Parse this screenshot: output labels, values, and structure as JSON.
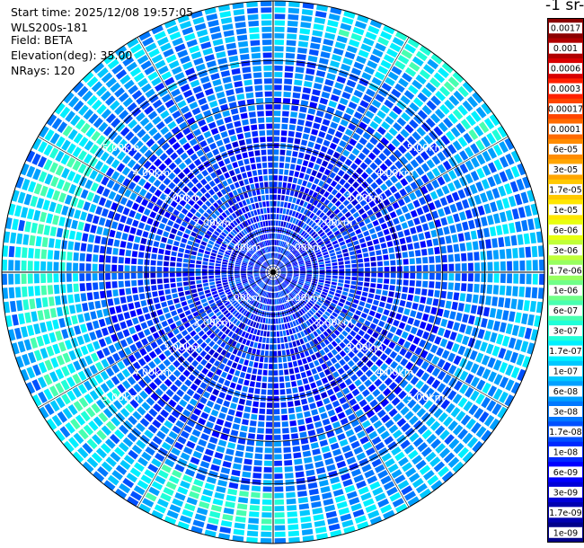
{
  "info": {
    "start_time": "Start time: 2025/12/08 19:57:05",
    "instrument": "WLS200s-181",
    "field": "Field: BETA",
    "elevation": "Elevation(deg): 35.00",
    "nrays": "NRays: 120"
  },
  "colorbar": {
    "title": "-1 sr-",
    "labels": [
      "0.0017",
      "0.001",
      "0.0006",
      "0.0003",
      "0.00017",
      "0.0001",
      "6e-05",
      "3e-05",
      "1.7e-05",
      "1e-05",
      "6e-06",
      "3e-06",
      "1.7e-06",
      "1e-06",
      "6e-07",
      "3e-07",
      "1.7e-07",
      "1e-07",
      "6e-08",
      "3e-08",
      "1.7e-08",
      "1e-08",
      "6e-09",
      "3e-09",
      "1.7e-09",
      "1e-09"
    ],
    "colors": [
      "#8b0000",
      "#b00000",
      "#d80000",
      "#ff2000",
      "#ff4500",
      "#ff6a00",
      "#ff8c00",
      "#ffa500",
      "#ffc800",
      "#ffe600",
      "#e8ff10",
      "#c0ff38",
      "#98ff60",
      "#70ff88",
      "#48ffb0",
      "#20ffd8",
      "#00f0ff",
      "#00c8ff",
      "#00a0ff",
      "#0078ff",
      "#0050ff",
      "#0028ff",
      "#0000ff",
      "#0000d8",
      "#0000b0",
      "#00008b"
    ]
  },
  "chart_data": {
    "type": "heatmap",
    "projection": "polar PPI",
    "range_unit": "km",
    "max_range_km": 5.0,
    "ring_labels": [
      "1.00km",
      "2.00km",
      "3.00km",
      "4.00km",
      "5.00km"
    ],
    "n_rays": 120,
    "elevation_deg": 35.0,
    "field": "BETA"
  }
}
